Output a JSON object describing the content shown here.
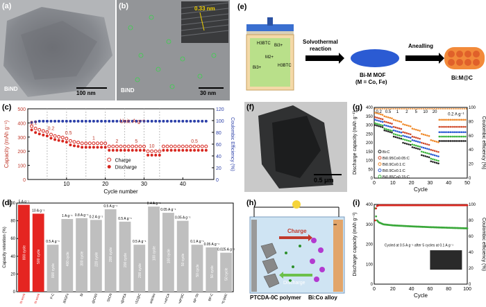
{
  "panels": {
    "a": {
      "label": "(a)",
      "sample": "BiND",
      "scalebar": "100 nm"
    },
    "b": {
      "label": "(b)",
      "sample": "BiND",
      "scalebar": "30 nm",
      "lattice": "0.33 nm"
    },
    "e": {
      "label": "(e)",
      "ligand1": "H3BTC",
      "ion1": "Bi3+",
      "ion2": "M2+",
      "ion3": "Bi3+",
      "ligand2": "H3BTC",
      "step1": "Solvothermal",
      "step1b": "reaction",
      "step2": "Anealling",
      "product1": "Bi-M MOF",
      "product1b": "(M = Co, Fe)",
      "product2": "Bi:M@C"
    },
    "f": {
      "label": "(f)",
      "scalebar": "0.5 μm"
    },
    "h": {
      "label": "(h)",
      "charge": "Charge",
      "discharge": "Discharge",
      "left": "PTCDA-0C polymer",
      "right": "Bi:Co alloy",
      "minus": "−"
    },
    "c": {
      "label": "(c)",
      "unit": "Unit: A g⁻¹",
      "legend_charge": "Charge",
      "legend_discharge": "Discharge",
      "rates": [
        "0.1",
        "0.2",
        "0.5",
        "1",
        "2",
        "5",
        "10",
        "0.5"
      ]
    },
    "g": {
      "label": "(g)",
      "rates": [
        "0.2",
        "0.5",
        "1",
        "2",
        "5",
        "10",
        "20"
      ],
      "rate_end": "0.2 A g⁻¹",
      "legend": [
        "Bi:C",
        "Bi0.95Co0.05:C",
        "Bi0.9Co0.1:C",
        "Bi0.9Co0.1:C",
        "Bi0.85Co0.15:C"
      ]
    },
    "d": {
      "label": "(d)"
    },
    "i": {
      "label": "(i)",
      "note": "Cycled at 0.5 A g⁻¹ after 5 cycles at 0.1 A g⁻¹"
    }
  },
  "chart_data": [
    {
      "id": "c",
      "type": "scatter",
      "title": "",
      "xlabel": "Cycle number",
      "ylabel": "Capacity (mAh g⁻¹)",
      "y2label": "Coulombic Efficiency (%)",
      "xlim": [
        0,
        48
      ],
      "ylim": [
        0,
        500
      ],
      "y2lim": [
        0,
        120
      ],
      "xticks": [
        10,
        20,
        30,
        40
      ],
      "yticks": [
        0,
        100,
        200,
        300,
        400,
        500
      ],
      "y2ticks": [
        0,
        20,
        40,
        60,
        80,
        100,
        120
      ],
      "series": [
        {
          "name": "Charge",
          "values": [
            372,
            356,
            346,
            338,
            331,
            313,
            303,
            297,
            292,
            285,
            268,
            261,
            257,
            251,
            251,
            251,
            251,
            251,
            251,
            251,
            229,
            229,
            229,
            229,
            229,
            229,
            229,
            229,
            229,
            229,
            195,
            195,
            195,
            195,
            229,
            229,
            229,
            229,
            229,
            229,
            229,
            229,
            229,
            229,
            229,
            229
          ]
        },
        {
          "name": "Discharge",
          "values": [
            360,
            342,
            332,
            324,
            318,
            302,
            292,
            286,
            281,
            274,
            254,
            248,
            244,
            238,
            238,
            238,
            238,
            238,
            238,
            238,
            216,
            216,
            216,
            216,
            216,
            216,
            216,
            216,
            216,
            216,
            182,
            182,
            182,
            182,
            216,
            216,
            216,
            216,
            216,
            216,
            216,
            216,
            216,
            216,
            216,
            216
          ]
        },
        {
          "name": "Coulombic Efficiency",
          "values": [
            97,
            98,
            99,
            99,
            99,
            99,
            99,
            99,
            99,
            99,
            99,
            99,
            99,
            99,
            99,
            99,
            99,
            99,
            99,
            99,
            99,
            99,
            99,
            99,
            99,
            99,
            99,
            99,
            99,
            99,
            99,
            99,
            99,
            99,
            99,
            99,
            99,
            99,
            99,
            99,
            99,
            99,
            99,
            99,
            99,
            99
          ]
        }
      ]
    },
    {
      "id": "g",
      "type": "scatter",
      "xlabel": "Cycle",
      "ylabel": "Discharge capacity (mAh g⁻¹)",
      "y2label": "Coulombic efficiency (%)",
      "xlim": [
        0,
        50
      ],
      "ylim": [
        0,
        400
      ],
      "y2lim": [
        0,
        100
      ],
      "xticks": [
        0,
        10,
        20,
        30,
        40,
        50
      ],
      "yticks": [
        0,
        50,
        100,
        150,
        200,
        250,
        300,
        350,
        400
      ],
      "y2ticks": [
        0,
        20,
        40,
        60,
        80,
        100
      ],
      "series": [
        {
          "name": "Bi:C",
          "values": [
            300,
            270,
            235,
            200,
            175,
            130,
            95,
            210
          ]
        },
        {
          "name": "Bi0.95Co0.05:C",
          "values": [
            345,
            320,
            290,
            260,
            235,
            200,
            160,
            290
          ]
        },
        {
          "name": "Bi0.9Co0.1:C",
          "values": [
            370,
            350,
            330,
            305,
            280,
            250,
            215,
            330
          ]
        },
        {
          "name": "Bi0.9Co0.1:C (2)",
          "values": [
            330,
            300,
            270,
            240,
            215,
            175,
            135,
            260
          ]
        },
        {
          "name": "Bi0.85Co0.15:C",
          "values": [
            310,
            280,
            250,
            220,
            190,
            150,
            110,
            235
          ]
        }
      ]
    },
    {
      "id": "d",
      "type": "bar",
      "ylabel": "Capacity retention (%)",
      "ylim": [
        0,
        100
      ],
      "yticks": [
        0,
        20,
        40,
        60,
        80,
        100
      ],
      "categories": [
        "This work",
        "This work",
        "P-C",
        "Bi@3DGFs",
        "Bi",
        "Sb@CNS",
        "SbCN",
        "Sb@PEA",
        "SnS2@C",
        "Bi microparticles",
        "3D-HPCA",
        "Sn4P3/C",
        "NP-Sb",
        "BP-C",
        "SnP0.94/C"
      ],
      "values": [
        98,
        88,
        53,
        82,
        83,
        81,
        93,
        79,
        53,
        96,
        89,
        80,
        53,
        50,
        44
      ],
      "top": [
        "5 A g⁻¹",
        "10 A g⁻¹",
        "0.5 A g⁻¹",
        "1 A g⁻¹",
        "0.8 A g⁻¹",
        "0.2 A g⁻¹",
        "0.5 A g⁻¹",
        "0.5 A g⁻¹",
        "0.5 A g⁻¹",
        "0.4 A g⁻¹",
        "0.05 A g⁻¹",
        "0.05 A g⁻¹",
        "0.1 A g⁻¹",
        "0.05 A g⁻¹",
        "0.025 A g⁻¹"
      ],
      "inside": [
        "800 cycle",
        "500 cycle",
        "800 cycle",
        "400 cycle",
        "300 cycle",
        "220 cycle",
        "200 cycle",
        "200 cycle",
        "200 cycle",
        "100 cycle",
        "100 cycle",
        "50 cycle",
        "50 cycle",
        "50 cycle",
        "50 cycle"
      ],
      "colors": [
        "#e52521",
        "#e52521",
        "#bfbfbf",
        "#bfbfbf",
        "#bfbfbf",
        "#bfbfbf",
        "#bfbfbf",
        "#bfbfbf",
        "#bfbfbf",
        "#bfbfbf",
        "#bfbfbf",
        "#bfbfbf",
        "#bfbfbf",
        "#bfbfbf",
        "#bfbfbf"
      ]
    },
    {
      "id": "i",
      "type": "scatter",
      "xlabel": "Cycle",
      "ylabel": "Discharge capacity (mAh g⁻¹)",
      "y2label": "Coulombic efficiency (%)",
      "xlim": [
        0,
        100
      ],
      "ylim": [
        0,
        400
      ],
      "y2lim": [
        0,
        100
      ],
      "xticks": [
        0,
        20,
        40,
        60,
        80,
        100
      ],
      "yticks": [
        0,
        100,
        200,
        300,
        400
      ],
      "y2ticks": [
        0,
        20,
        40,
        60,
        80,
        100
      ],
      "series": [
        {
          "name": "Discharge capacity",
          "x": [
            1,
            2,
            3,
            5,
            10,
            20,
            40,
            60,
            80,
            100
          ],
          "values": [
            380,
            340,
            320,
            310,
            300,
            295,
            290,
            286,
            283,
            280
          ]
        },
        {
          "name": "Coulombic efficiency",
          "x": [
            1,
            2,
            3,
            5,
            10,
            20,
            40,
            60,
            80,
            100
          ],
          "values": [
            80,
            95,
            98,
            99,
            99,
            99,
            99,
            99,
            99,
            99
          ]
        }
      ]
    }
  ]
}
